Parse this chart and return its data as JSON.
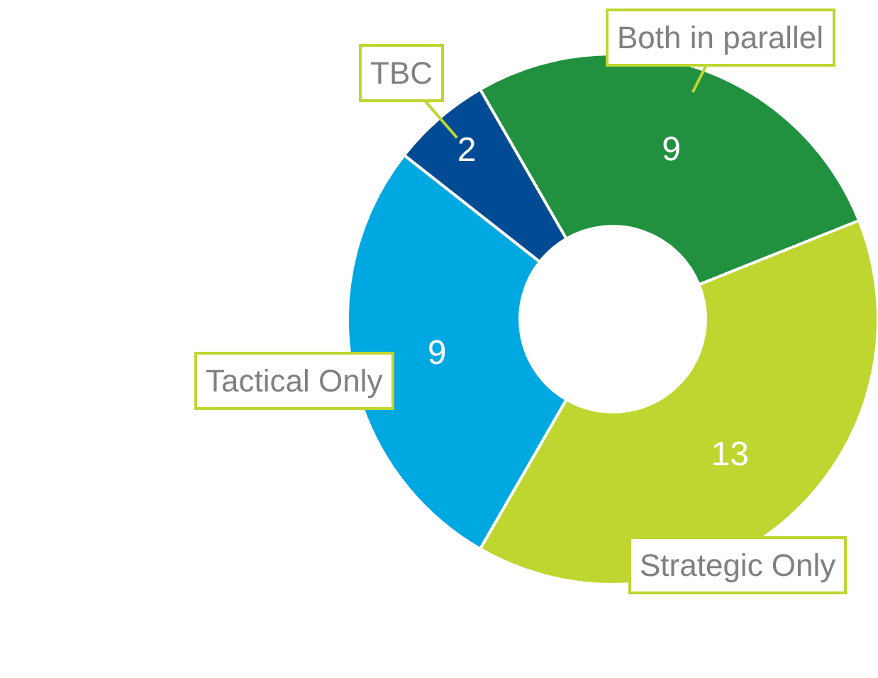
{
  "chart_data": {
    "type": "donut",
    "categories": [
      "Both in parallel",
      "Strategic Only",
      "Tactical Only",
      "TBC"
    ],
    "values": [
      9,
      13,
      9,
      2
    ],
    "colors": [
      "#21913f",
      "#bed62f",
      "#00a8e1",
      "#004b93"
    ],
    "data_labels": true,
    "legend": false
  }
}
